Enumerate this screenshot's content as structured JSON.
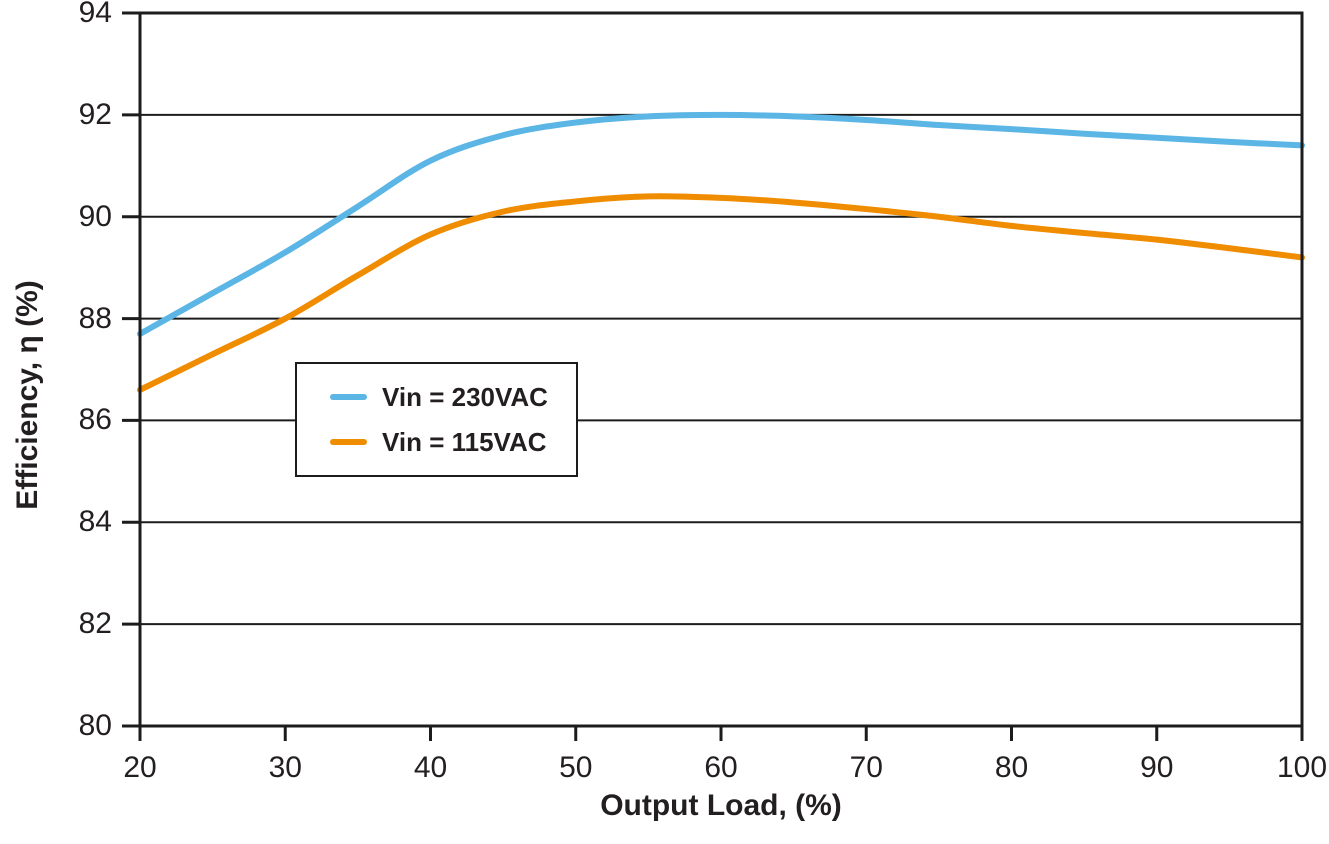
{
  "chart_data": {
    "type": "line",
    "title": "",
    "xlabel": "Output Load, (%)",
    "ylabel": "Efficiency, η (%)",
    "xlim": [
      20,
      100
    ],
    "ylim": [
      80,
      94
    ],
    "x_ticks": [
      20,
      30,
      40,
      50,
      60,
      70,
      80,
      90,
      100
    ],
    "y_ticks": [
      80,
      82,
      84,
      86,
      88,
      90,
      92,
      94
    ],
    "grid": "horizontal-only",
    "legend_position": "inside-center-left",
    "x": [
      20,
      25,
      30,
      35,
      40,
      45,
      50,
      55,
      60,
      65,
      70,
      75,
      80,
      85,
      90,
      95,
      100
    ],
    "series": [
      {
        "name": "Vin = 230VAC",
        "color": "#5bb5e5",
        "values": [
          87.7,
          88.5,
          89.3,
          90.2,
          91.1,
          91.6,
          91.85,
          91.97,
          92.0,
          91.97,
          91.9,
          91.8,
          91.72,
          91.63,
          91.55,
          91.47,
          91.4
        ]
      },
      {
        "name": "Vin = 115VAC",
        "color": "#f08c00",
        "values": [
          86.6,
          87.3,
          88.0,
          88.85,
          89.65,
          90.1,
          90.3,
          90.4,
          90.37,
          90.28,
          90.15,
          90.0,
          89.82,
          89.68,
          89.55,
          89.38,
          89.2
        ]
      }
    ]
  },
  "colors": {
    "axis": "#1c1c1c",
    "gridline": "#1c1c1c",
    "text": "#231f20",
    "background": "#ffffff"
  }
}
